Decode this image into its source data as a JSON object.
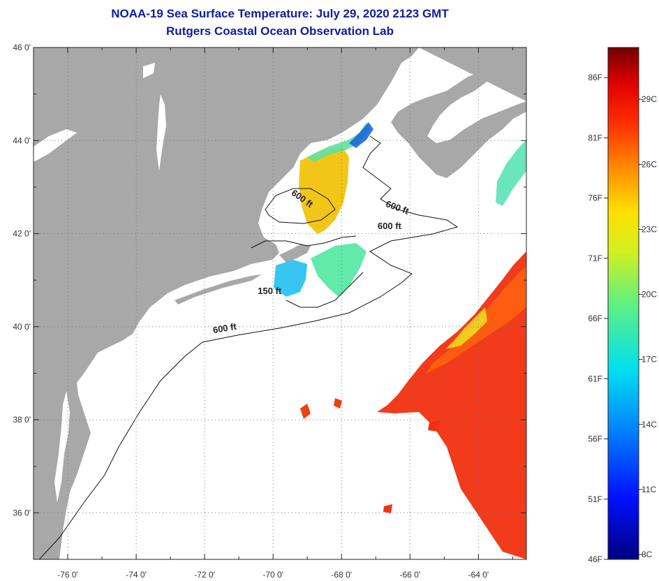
{
  "title": {
    "line1": "NOAA-19 Sea Surface Temperature:  July 29, 2020 2123 GMT",
    "line2": "Rutgers Coastal Ocean Observation Lab"
  },
  "map": {
    "lon_range": [
      -77,
      -62.6
    ],
    "lat_range": [
      35,
      46
    ],
    "lat_labels": [
      "46 0'",
      "44 0'",
      "42 0'",
      "40 0'",
      "38 0'",
      "36 0'"
    ],
    "lat_values": [
      46,
      44,
      42,
      40,
      38,
      36
    ],
    "lon_labels": [
      "-76 0'",
      "-74 0'",
      "-72 0'",
      "-70 0'",
      "-68 0'",
      "-66 0'",
      "-64 0'"
    ],
    "lon_values": [
      -76,
      -74,
      -72,
      -70,
      -68,
      -66,
      -64
    ],
    "contour_labels": [
      {
        "text": "600 ft",
        "lon": -69.2,
        "lat": 42.7,
        "angle": 35
      },
      {
        "text": "600 ft",
        "lon": -66.4,
        "lat": 42.5,
        "angle": 20
      },
      {
        "text": "600 ft",
        "lon": -66.6,
        "lat": 42.1,
        "angle": 0
      },
      {
        "text": "150 ft",
        "lon": -70.1,
        "lat": 40.7,
        "angle": 0
      },
      {
        "text": "600 ft",
        "lon": -71.4,
        "lat": 39.9,
        "angle": -10
      }
    ],
    "colors": {
      "land": "#a8a8a8",
      "water": "#ffffff",
      "grid": "#888888",
      "contour": "#111111"
    }
  },
  "colorbar": {
    "f_labels": [
      "86F",
      "81F",
      "76F",
      "71F",
      "66F",
      "61F",
      "56F",
      "51F",
      "46F"
    ],
    "f_values": [
      86,
      81,
      76,
      71,
      66,
      61,
      56,
      51,
      46
    ],
    "c_labels": [
      "29C",
      "26C",
      "23C",
      "20C",
      "17C",
      "14C",
      "11C",
      "8C"
    ],
    "c_values": [
      29,
      26,
      23,
      20,
      17,
      14,
      11,
      8
    ],
    "min_f": 46,
    "max_f": 88.5
  }
}
